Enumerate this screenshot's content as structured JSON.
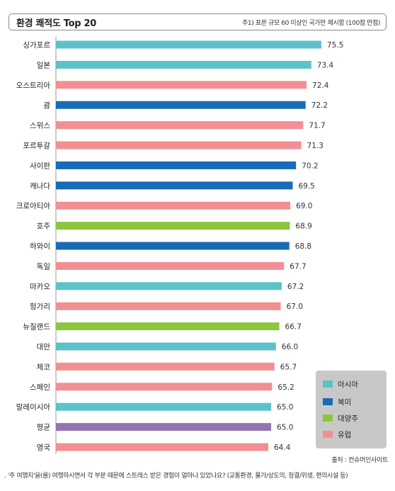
{
  "header": {
    "title": "환경 쾌적도 Top 20",
    "note": "주1) 표본 규모 60 이상인 국가만 제시함 (100점 만점)"
  },
  "source": "출처 : 컨슈머인사이트",
  "footnote": ". '주 여행지'을(를) 여행하시면서 각 부분 때문에 스트레스 받은 경험이 얼마나 있었나요? (교통환경, 물가/상도의, 청결/위생, 편의시설 등)",
  "colors": {
    "asia": "#5bc3c8",
    "north_america": "#1a6bb5",
    "oceania": "#8cc63f",
    "europe": "#f28f93",
    "average": "#9473b2"
  },
  "legend": [
    {
      "key": "asia",
      "label": "아시아"
    },
    {
      "key": "north_america",
      "label": "북미"
    },
    {
      "key": "oceania",
      "label": "대양주"
    },
    {
      "key": "europe",
      "label": "유럽"
    }
  ],
  "chart_data": {
    "type": "bar",
    "orientation": "horizontal",
    "title": "환경 쾌적도 Top 20",
    "categories": [
      "싱가포르",
      "일본",
      "오스트리아",
      "괌",
      "스위스",
      "포르투갈",
      "사이판",
      "캐나다",
      "크로아티아",
      "호주",
      "하와이",
      "독일",
      "마카오",
      "헝가리",
      "뉴질랜드",
      "대만",
      "체코",
      "스페인",
      "말레이시아",
      "평균",
      "영국"
    ],
    "values": [
      75.5,
      73.4,
      72.4,
      72.2,
      71.7,
      71.3,
      70.2,
      69.5,
      69.0,
      68.9,
      68.8,
      67.7,
      67.2,
      67.0,
      66.7,
      66.0,
      65.7,
      65.2,
      65.0,
      65.0,
      64.4
    ],
    "labels": [
      "75.5",
      "73.4",
      "72.4",
      "72.2",
      "71.7",
      "71.3",
      "70.2",
      "69.5",
      "69.0",
      "68.9",
      "68.8",
      "67.7",
      "67.2",
      "67.0",
      "66.7",
      "66.0",
      "65.7",
      "65.2",
      "65.0",
      "65.0",
      "64.4"
    ],
    "region": [
      "asia",
      "asia",
      "europe",
      "north_america",
      "europe",
      "europe",
      "north_america",
      "north_america",
      "europe",
      "oceania",
      "north_america",
      "europe",
      "asia",
      "europe",
      "oceania",
      "asia",
      "europe",
      "europe",
      "asia",
      "average",
      "europe"
    ],
    "xlim": [
      20,
      75.5
    ],
    "grid": false,
    "legend_position": "bottom-right"
  }
}
